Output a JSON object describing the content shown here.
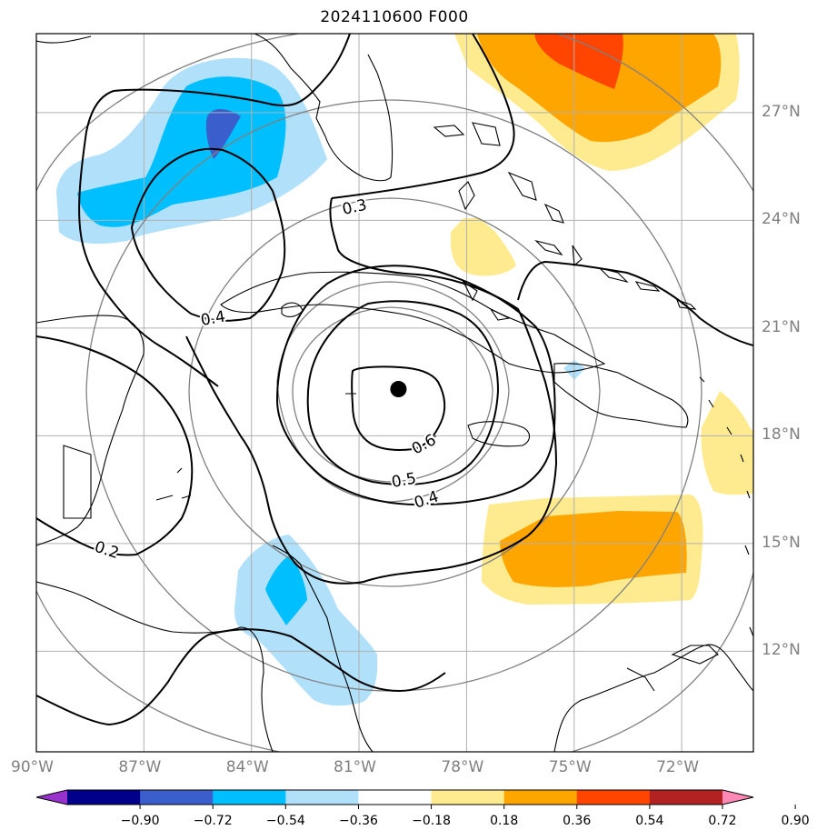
{
  "title": "2024110600 F000",
  "lat_labels": [
    {
      "text": "27°N",
      "lat": 27
    },
    {
      "text": "24°N",
      "lat": 24
    },
    {
      "text": "21°N",
      "lat": 21
    },
    {
      "text": "18°N",
      "lat": 18
    },
    {
      "text": "15°N",
      "lat": 15
    },
    {
      "text": "12°N",
      "lat": 12
    }
  ],
  "lon_labels": [
    {
      "text": "90°W",
      "lon": -90
    },
    {
      "text": "87°W",
      "lon": -87
    },
    {
      "text": "84°W",
      "lon": -84
    },
    {
      "text": "81°W",
      "lon": -81
    },
    {
      "text": "78°W",
      "lon": -78
    },
    {
      "text": "75°W",
      "lon": -75
    },
    {
      "text": "72°W",
      "lon": -72
    }
  ],
  "extent": {
    "lon_min": -90,
    "lon_max": -70,
    "lat_min": 9.2,
    "lat_max": 29.2
  },
  "storm_center": {
    "lon": -79.9,
    "lat": 19.3
  },
  "contour_labels": [
    {
      "text": "0.3"
    },
    {
      "text": "0.4"
    },
    {
      "text": "0.6"
    },
    {
      "text": "0.5"
    },
    {
      "text": "0.4"
    },
    {
      "text": "0.2"
    }
  ],
  "colorbar": {
    "colors": [
      "#9932cc",
      "#00008b",
      "#3a5fcd",
      "#00bfff",
      "#b0e0fa",
      "#ffffff",
      "#ffeb8f",
      "#ffa500",
      "#ff4500",
      "#b22222",
      "#ff88b4"
    ],
    "ticks": [
      "−0.90",
      "−0.72",
      "−0.54",
      "−0.36",
      "−0.18",
      "0.18",
      "0.36",
      "0.54",
      "0.72",
      "0.90"
    ]
  }
}
